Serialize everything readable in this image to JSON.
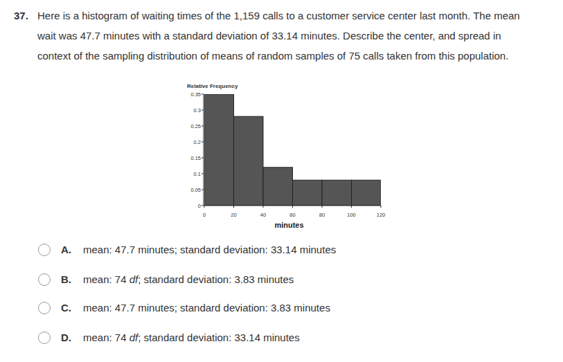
{
  "question": {
    "number": "37.",
    "lines": [
      "Here is a histogram of waiting times of the 1,159 calls to a customer service center last month. The mean",
      "wait was 47.7 minutes with a standard deviation of 33.14 minutes.  Describe the center, and spread in",
      "context of the sampling distribution of means of random samples of 75 calls taken from this population."
    ]
  },
  "chart_data": {
    "type": "histogram",
    "y_label": "Relative Frequency",
    "x_label": "minutes",
    "bins": [
      0,
      20,
      40,
      60,
      80,
      100,
      120
    ],
    "values": [
      0.35,
      0.28,
      0.12,
      0.08,
      0.08,
      0.08
    ],
    "color": "#555555",
    "xlim": [
      0,
      120
    ],
    "xticks": [
      0,
      20,
      40,
      60,
      80,
      100,
      120
    ],
    "ylim": [
      0,
      0.35
    ],
    "yticks": [
      0,
      0.05,
      0.1,
      0.15,
      0.2,
      0.25,
      0.3,
      0.35
    ],
    "grid": false
  },
  "options": [
    {
      "letter": "A.",
      "parts": [
        {
          "text": "mean: 47.7 minutes; standard deviation: 33.14 minutes"
        }
      ]
    },
    {
      "letter": "B.",
      "parts": [
        {
          "text": "mean: 74 "
        },
        {
          "text": "df",
          "italic": true
        },
        {
          "text": "; standard deviation: 3.83 minutes"
        }
      ]
    },
    {
      "letter": "C.",
      "parts": [
        {
          "text": "mean: 47.7 minutes; standard deviation: 3.83 minutes"
        }
      ]
    },
    {
      "letter": "D.",
      "parts": [
        {
          "text": "mean: 74 "
        },
        {
          "text": "df",
          "italic": true
        },
        {
          "text": "; standard deviation: 33.14 minutes"
        }
      ]
    }
  ]
}
